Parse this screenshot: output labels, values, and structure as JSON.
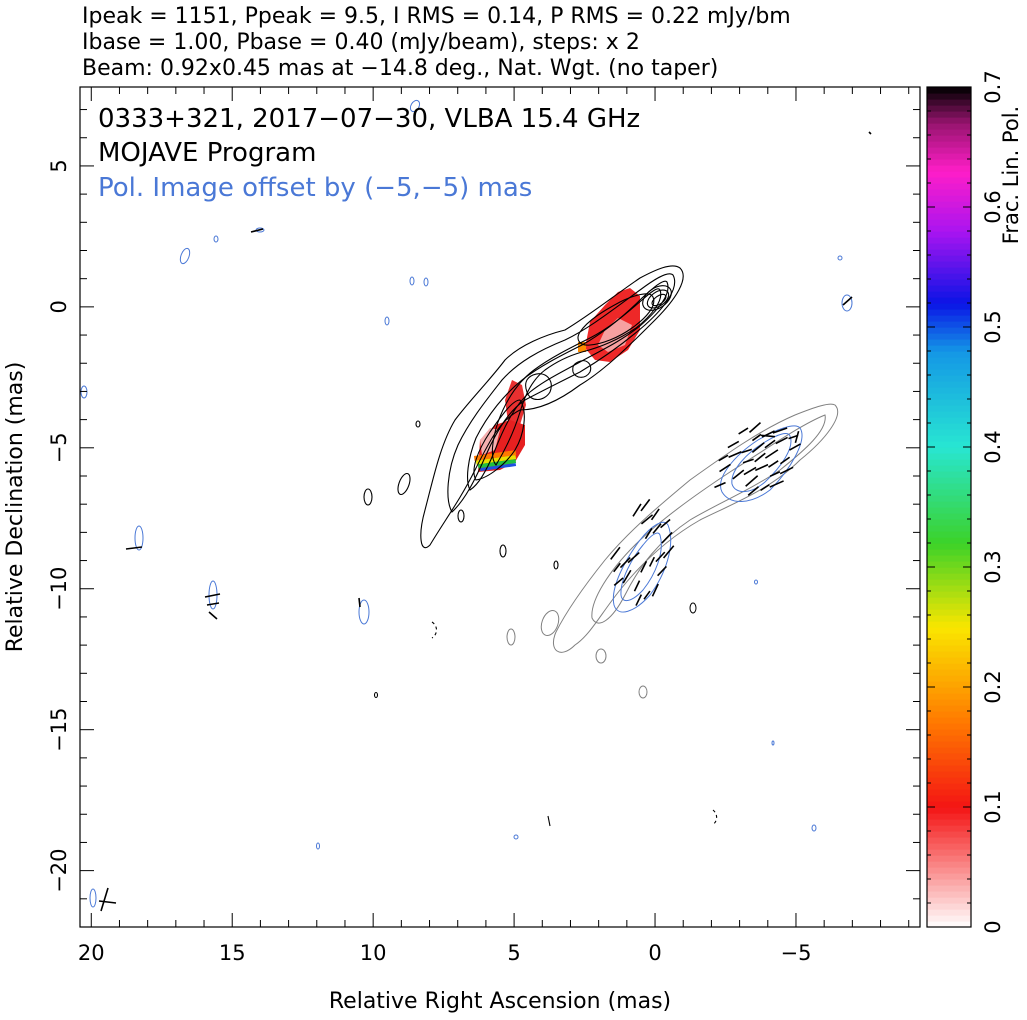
{
  "header": {
    "line1": "Ipeak = 1151, Ppeak = 9.5, I RMS = 0.14, P RMS = 0.22 mJy/bm",
    "line2": "Ibase = 1.00, Pbase = 0.40 (mJy/beam), steps: x 2",
    "line3": "Beam: 0.92x0.45 mas at −14.8 deg., Nat. Wgt. (no taper)"
  },
  "annotations": {
    "source": "0333+321, 2017−07−30, VLBA 15.4 GHz",
    "program": "MOJAVE Program",
    "offset": "Pol. Image offset by (−5,−5) mas"
  },
  "colors": {
    "stokes_i_contours": "#000000",
    "offset_i_contours": "#808080",
    "pol_contours": "#4a78d6",
    "offset_text": "#4a78d6",
    "evpa_ticks": "#000000"
  },
  "chart_data": {
    "type": "contour_image",
    "title": "",
    "xlabel": "Relative Right Ascension (mas)",
    "ylabel": "Relative Declination (mas)",
    "xlim": [
      20.4,
      -9.4
    ],
    "ylim": [
      -22.0,
      7.8
    ],
    "xticks": [
      20,
      15,
      10,
      5,
      0,
      -5
    ],
    "xtick_labels": [
      "20",
      "15",
      "10",
      "5",
      "0",
      "−5"
    ],
    "yticks": [
      5,
      0,
      -5,
      -10,
      -15,
      -20
    ],
    "ytick_labels": [
      "5",
      "0",
      "−5",
      "−10",
      "−15",
      "−20"
    ],
    "colorbar": {
      "label": "Frac. Lin. Pol.",
      "range": [
        0,
        0.7
      ],
      "ticks": [
        0,
        0.1,
        0.2,
        0.3,
        0.4,
        0.5,
        0.6,
        0.7
      ],
      "tick_labels": [
        "0",
        "0.1",
        "0.2",
        "0.3",
        "0.4",
        "0.5",
        "0.6",
        "0.7"
      ]
    },
    "jet_ridge_mas": [
      [
        0.2,
        0.1
      ],
      [
        1.5,
        -0.8
      ],
      [
        3.0,
        -2.0
      ],
      [
        4.2,
        -2.9
      ],
      [
        5.0,
        -3.8
      ],
      [
        5.3,
        -5.1
      ],
      [
        6.3,
        -6.4
      ],
      [
        7.5,
        -7.6
      ]
    ],
    "pol_patches": [
      {
        "ra": 0.8,
        "dec": -0.5,
        "frac_pol": 0.1
      },
      {
        "ra": 2.2,
        "dec": -1.2,
        "frac_pol": 0.08
      },
      {
        "ra": 5.0,
        "dec": -3.5,
        "frac_pol": 0.1
      },
      {
        "ra": 5.4,
        "dec": -5.3,
        "frac_pol": 0.12
      }
    ]
  }
}
